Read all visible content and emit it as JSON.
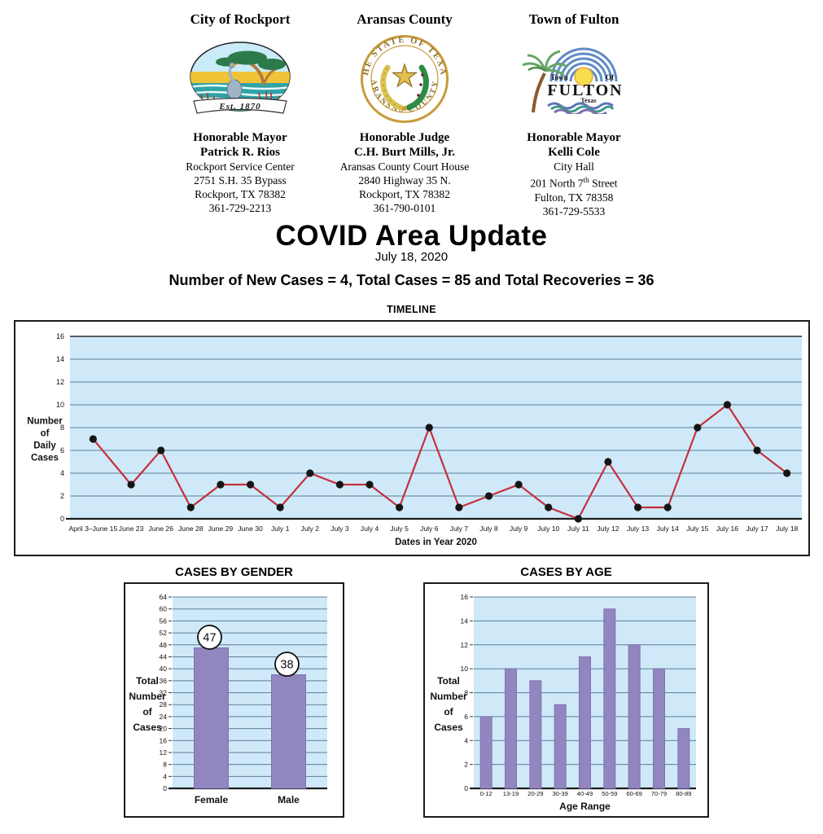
{
  "header": {
    "orgs": [
      {
        "title": "City of Rockport",
        "logo": {
          "name": "city-of-rockport-seal",
          "banner_text": "Est. 1870"
        },
        "official_title": "Honorable Mayor",
        "official_name": "Patrick R. Rios",
        "address_lines": [
          "Rockport Service Center",
          "2751 S.H. 35 Bypass",
          "Rockport, TX 78382",
          "361-729-2213"
        ]
      },
      {
        "title": "Aransas County",
        "logo": {
          "name": "aransas-county-seal",
          "ring_text_top": "THE STATE OF TEXAS",
          "ring_text_bottom": "ARANSAS COUNTY"
        },
        "official_title": "Honorable Judge",
        "official_name": "C.H. Burt Mills, Jr.",
        "address_lines": [
          "Aransas County Court House",
          "2840 Highway 35 N.",
          "Rockport, TX 78382",
          "361-790-0101"
        ]
      },
      {
        "title": "Town of Fulton",
        "logo": {
          "name": "town-of-fulton-logo",
          "word_town": "Town",
          "word_of": "Of",
          "word_name": "FULTON",
          "word_state": "Texas"
        },
        "official_title": "Honorable Mayor",
        "official_name": "Kelli Cole",
        "address_lines": [
          "City Hall",
          "201 North 7th Street",
          "Fulton, TX 78358",
          "361-729-5533"
        ]
      }
    ]
  },
  "title_block": {
    "title": "COVID Area Update",
    "date": "July 18, 2020",
    "summary": "Number of New Cases = 4, Total Cases = 85 and Total Recoveries = 36"
  },
  "chart_data": [
    {
      "id": "timeline",
      "type": "line",
      "title": "TIMELINE",
      "xlabel": "Dates in Year 2020",
      "ylabel": "Number of Daily Cases",
      "categories": [
        "April 3–June 15",
        "June 23",
        "June 26",
        "June 28",
        "June 29",
        "June 30",
        "July 1",
        "July 2",
        "July 3",
        "July 4",
        "July 5",
        "July 6",
        "July 7",
        "July 8",
        "July 9",
        "July 10",
        "July 11",
        "July 12",
        "July 13",
        "July 14",
        "July 15",
        "July 16",
        "July 17",
        "July 18"
      ],
      "values": [
        7,
        3,
        6,
        1,
        3,
        3,
        1,
        4,
        3,
        3,
        1,
        8,
        1,
        2,
        3,
        1,
        0,
        5,
        1,
        1,
        8,
        10,
        6,
        4
      ],
      "ylim": [
        0,
        16
      ],
      "ytick_step": 2,
      "grid": true,
      "legend": "none"
    },
    {
      "id": "gender",
      "type": "bar",
      "title": "CASES BY GENDER",
      "xlabel": "",
      "ylabel": "Total Number of Cases",
      "categories": [
        "Female",
        "Male"
      ],
      "values": [
        47,
        38
      ],
      "data_labels": "circled",
      "ylim": [
        0,
        64
      ],
      "ytick_step": 4,
      "grid": true,
      "legend": "none"
    },
    {
      "id": "age",
      "type": "bar",
      "title": "CASES BY AGE",
      "xlabel": "Age Range",
      "ylabel": "Total Number of Cases",
      "categories": [
        "0-12",
        "13-19",
        "20-29",
        "30-39",
        "40-49",
        "50-59",
        "60-69",
        "70-79",
        "80-89"
      ],
      "values": [
        6,
        10,
        9,
        7,
        11,
        15,
        12,
        10,
        5
      ],
      "ylim": [
        0,
        16
      ],
      "ytick_step": 2,
      "grid": true,
      "legend": "none"
    }
  ],
  "colors": {
    "plot_bg": "#cfe9f9",
    "grid": "#5b7e99",
    "axis": "#1c1c1c",
    "line": "#c5303c",
    "marker": "#151515",
    "bar": "#9286c1",
    "bar_edge": "#7f73ae",
    "frame": "#1c1c1c",
    "label_circle_fill": "#ffffff",
    "label_circle_edge": "#111111"
  }
}
